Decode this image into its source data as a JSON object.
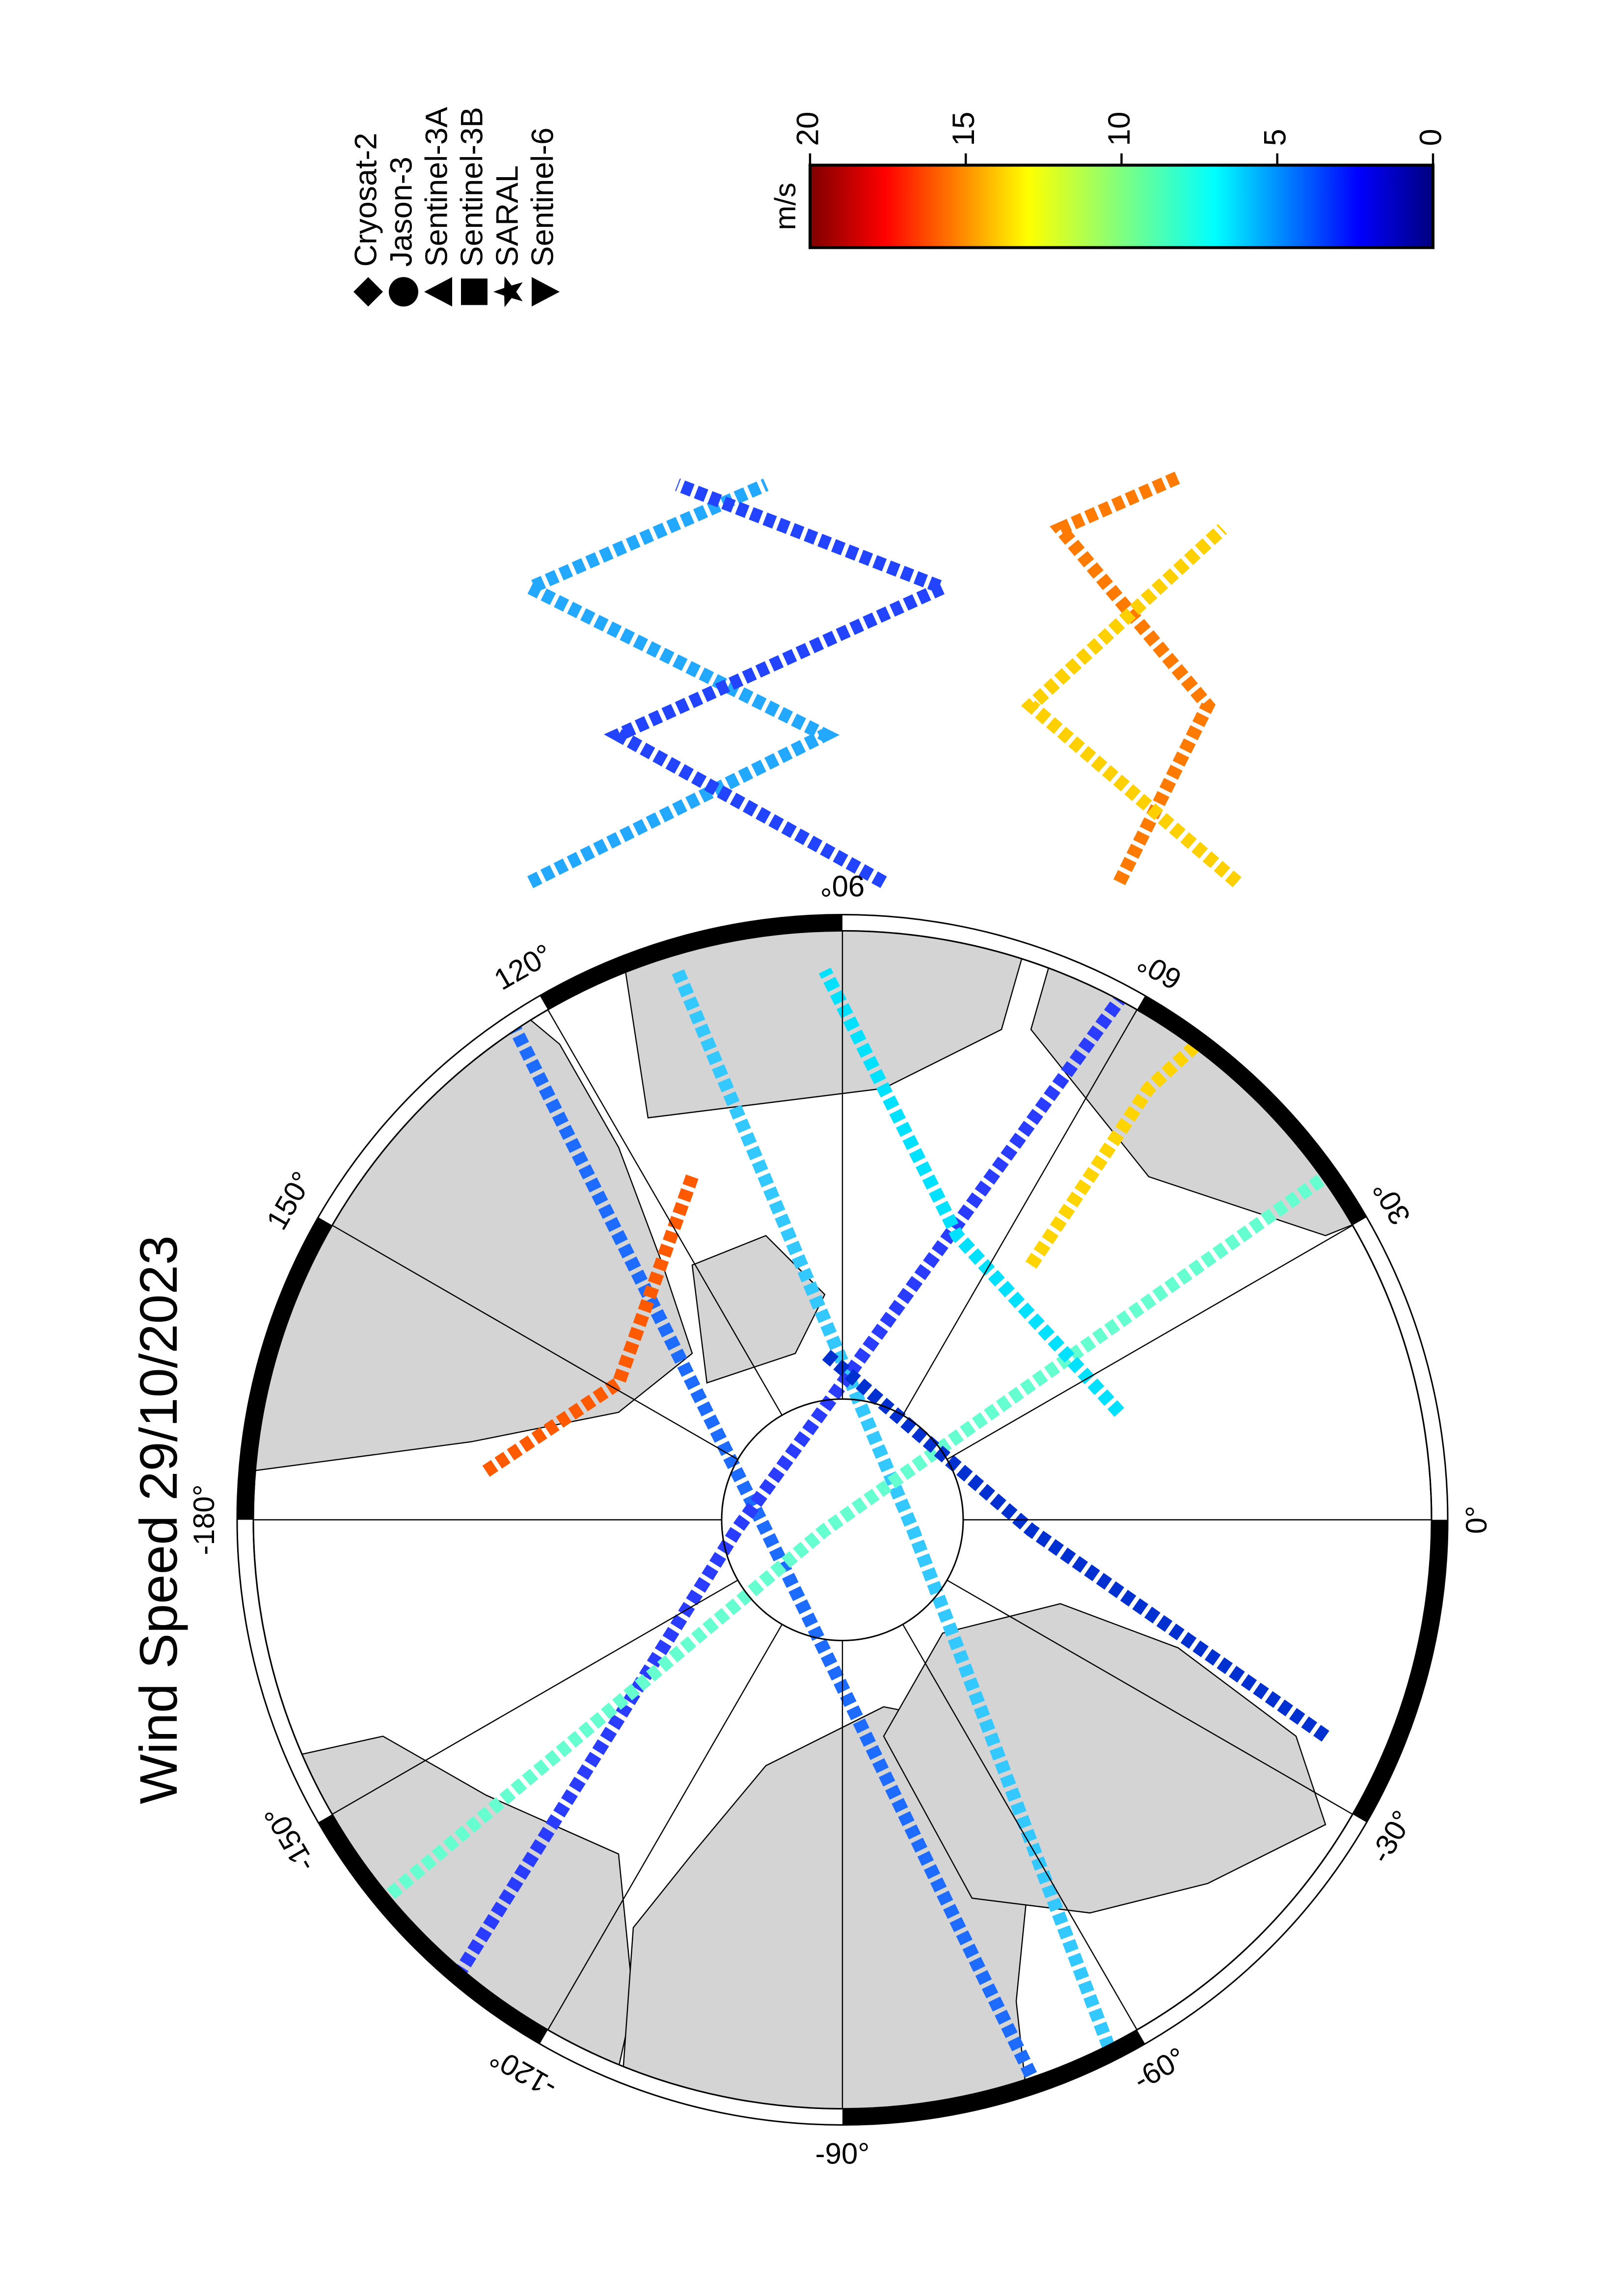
{
  "title": "Wind Speed 29/10/2023",
  "legend": [
    "Cryosat-2",
    "Jason-3",
    "Sentinel-3A",
    "Sentinel-3B",
    "SARAL",
    "Sentinel-6"
  ],
  "colorbar": {
    "label": "m/s",
    "lim": [
      0,
      20
    ],
    "ticks": [
      0,
      5,
      10,
      15,
      20
    ]
  },
  "longitude_labels": [
    {
      "value": -180,
      "label": "-180°"
    },
    {
      "value": -150,
      "label": "-150°"
    },
    {
      "value": -120,
      "label": "-120°"
    },
    {
      "value": -90,
      "label": "-90°"
    },
    {
      "value": -60,
      "label": "-60°"
    },
    {
      "value": -30,
      "label": "-30°"
    },
    {
      "value": 0,
      "label": "0°"
    },
    {
      "value": 30,
      "label": "30°"
    },
    {
      "value": 60,
      "label": "60°"
    },
    {
      "value": 90,
      "label": "90°"
    },
    {
      "value": 120,
      "label": "120°"
    },
    {
      "value": 150,
      "label": "150°"
    }
  ]
}
